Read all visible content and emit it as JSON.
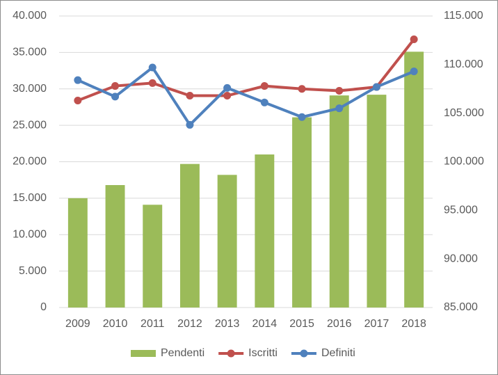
{
  "chart_data": {
    "type": "bar-line",
    "categories": [
      "2009",
      "2010",
      "2011",
      "2012",
      "2013",
      "2014",
      "2015",
      "2016",
      "2017",
      "2018"
    ],
    "series": [
      {
        "name": "Pendenti",
        "type": "bar",
        "axis": "y",
        "color": "#9bbb59",
        "values": [
          15000,
          16800,
          14100,
          19700,
          18200,
          21000,
          26100,
          29100,
          29200,
          35100
        ]
      },
      {
        "name": "Iscritti",
        "type": "line",
        "axis": "y2",
        "color": "#c0504d",
        "values": [
          106300,
          107800,
          108100,
          106800,
          106800,
          107800,
          107500,
          107300,
          107700,
          112600
        ]
      },
      {
        "name": "Definiti",
        "type": "line",
        "axis": "y2",
        "color": "#4f81bd",
        "values": [
          108400,
          106700,
          109700,
          103800,
          107600,
          106100,
          104600,
          105500,
          107700,
          109300
        ]
      }
    ],
    "ylim": [
      0,
      40000
    ],
    "yticks": [
      0,
      {
        "value": 5000,
        "label": "5.000"
      },
      {
        "value": 10000,
        "label": "10.000"
      },
      {
        "value": 15000,
        "label": "15.000"
      },
      {
        "value": 20000,
        "label": "20.000"
      },
      {
        "value": 25000,
        "label": "25.000"
      },
      {
        "value": 30000,
        "label": "30.000"
      },
      {
        "value": 35000,
        "label": "35.000"
      },
      {
        "value": 40000,
        "label": "40.000"
      }
    ],
    "y2lim": [
      85000,
      115000
    ],
    "y2ticks": [
      {
        "value": 85000,
        "label": "85.000"
      },
      {
        "value": 90000,
        "label": "90.000"
      },
      {
        "value": 95000,
        "label": "95.000"
      },
      {
        "value": 100000,
        "label": "100.000"
      },
      {
        "value": 105000,
        "label": "105.000"
      },
      {
        "value": 110000,
        "label": "110.000"
      },
      {
        "value": 115000,
        "label": "115.000"
      }
    ],
    "grid": true,
    "legend": "bottom"
  }
}
